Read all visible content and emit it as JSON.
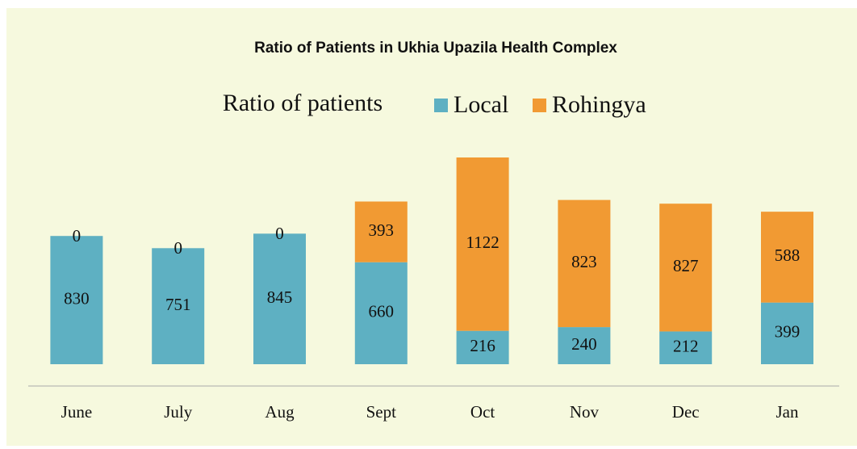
{
  "chart_data": {
    "type": "stacked_bar",
    "title": "Ratio of Patients in Ukhia Upazila Health Complex",
    "subtitle": "Ratio of patients",
    "categories": [
      "June",
      "July",
      "Aug",
      "Sept",
      "Oct",
      "Nov",
      "Dec",
      "Jan"
    ],
    "series": [
      {
        "name": "Local",
        "color": "#5eb0c2",
        "values": [
          830,
          751,
          845,
          660,
          216,
          240,
          212,
          399
        ]
      },
      {
        "name": "Rohingya",
        "color": "#f19a33",
        "values": [
          0,
          0,
          0,
          393,
          1122,
          823,
          827,
          588
        ]
      }
    ],
    "legend": "top"
  }
}
